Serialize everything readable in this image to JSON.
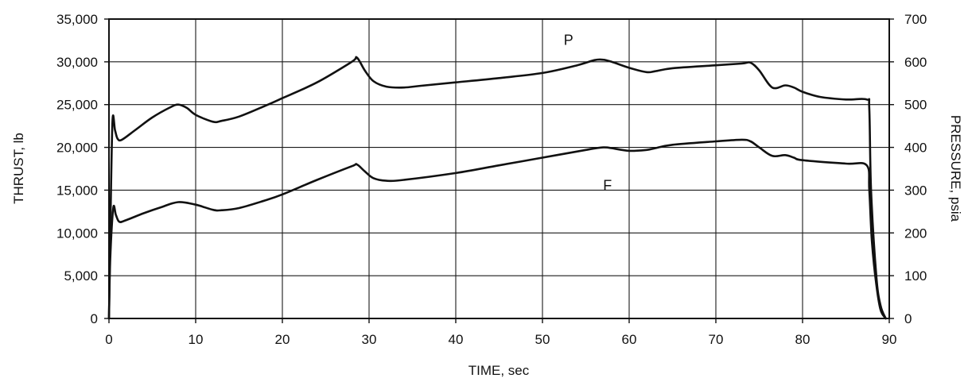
{
  "chart_data": {
    "type": "line",
    "xlabel": "TIME, sec",
    "ylabel_left": "THRUST, lb",
    "ylabel_right": "PRESSURE, psia",
    "xlim": [
      0,
      90
    ],
    "ylim_left": [
      0,
      35000
    ],
    "ylim_right": [
      0,
      700
    ],
    "grid": true,
    "x_ticks": [
      0,
      10,
      20,
      30,
      40,
      50,
      60,
      70,
      80,
      90
    ],
    "y_left_ticks": [
      "0",
      "5,000",
      "10,000",
      "15,000",
      "20,000",
      "25,000",
      "30,000",
      "35,000"
    ],
    "y_right_ticks": [
      "0",
      "100",
      "200",
      "300",
      "400",
      "500",
      "600",
      "700"
    ],
    "series": [
      {
        "name": "P",
        "axis": "right",
        "x": [
          0,
          0.15,
          0.4,
          0.7,
          1.0,
          1.5,
          3,
          5,
          7,
          8,
          9,
          10,
          12,
          13,
          15,
          18,
          20,
          24,
          28,
          28.6,
          29.5,
          30.5,
          32,
          34,
          36,
          40,
          45,
          50,
          54,
          56,
          57,
          58,
          60,
          62,
          63,
          65,
          70,
          73,
          74,
          75,
          76.5,
          78,
          79,
          80,
          82,
          85,
          87.4,
          87.7,
          87.9,
          88.5,
          89,
          89.6
        ],
        "y": [
          0,
          200,
          460,
          440,
          420,
          418,
          440,
          470,
          493,
          500,
          492,
          476,
          460,
          462,
          472,
          497,
          515,
          552,
          600,
          610,
          580,
          555,
          542,
          540,
          544,
          552,
          562,
          574,
          592,
          604,
          605,
          600,
          586,
          576,
          578,
          585,
          592,
          596,
          598,
          580,
          540,
          545,
          540,
          530,
          518,
          512,
          512,
          490,
          300,
          100,
          30,
          0
        ]
      },
      {
        "name": "F",
        "axis": "left",
        "x": [
          0,
          0.15,
          0.5,
          0.8,
          1.2,
          2,
          4,
          6,
          8,
          10,
          12,
          13,
          15,
          18,
          20,
          24,
          28,
          28.6,
          29.5,
          30.5,
          32,
          34,
          40,
          45,
          50,
          55,
          57,
          58,
          60,
          62,
          63,
          65,
          70,
          73,
          74,
          75,
          76.5,
          78,
          79,
          80,
          85,
          87.4,
          87.7,
          88,
          88.5,
          89,
          89.6
        ],
        "y": [
          0,
          7000,
          12900,
          12100,
          11300,
          11500,
          12300,
          13000,
          13600,
          13300,
          12700,
          12650,
          12900,
          13800,
          14500,
          16200,
          17800,
          18000,
          17200,
          16400,
          16100,
          16200,
          17000,
          17900,
          18800,
          19700,
          20000,
          19900,
          19600,
          19700,
          19900,
          20300,
          20700,
          20900,
          20700,
          20000,
          19000,
          19100,
          18800,
          18500,
          18100,
          17900,
          15000,
          9000,
          4000,
          1000,
          0
        ]
      }
    ],
    "annotations": [
      {
        "text": "P",
        "x": 53,
        "y": 640
      },
      {
        "text": "F",
        "x": 57.5,
        "y": 300
      }
    ]
  }
}
